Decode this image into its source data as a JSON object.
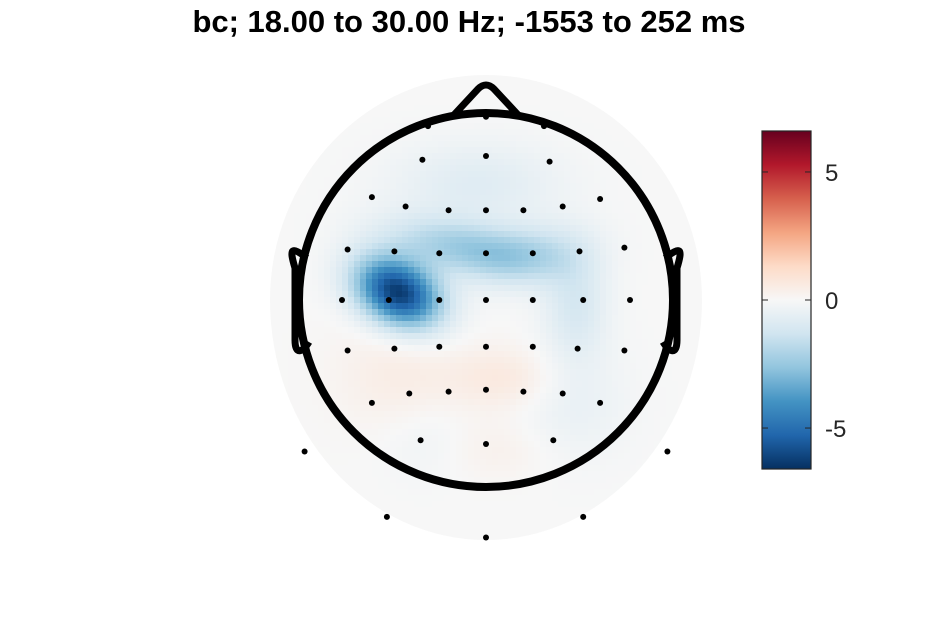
{
  "chart_data": {
    "type": "heatmap",
    "subtype": "topographic-scalp-map",
    "title": "bc; 18.00 to 30.00 Hz; -1553 to 252 ms",
    "colorbar": {
      "limits": [
        -6.6,
        6.6
      ],
      "ticks": [
        5,
        0,
        -5
      ],
      "tick_labels": [
        "5",
        "0",
        "-5"
      ],
      "colormap": [
        "#053061",
        "#2166ac",
        "#4393c3",
        "#92c5de",
        "#d1e5f0",
        "#f7f7f7",
        "#fddbc7",
        "#f4a582",
        "#d6604d",
        "#b2182b",
        "#67001f"
      ]
    },
    "head": {
      "outline_color": "#000000",
      "grid_visible": false
    },
    "blobs": [
      {
        "x": -0.47,
        "y": 0.04,
        "sx": 0.17,
        "sy": 0.12,
        "value": -6.4,
        "angle": -28
      },
      {
        "x": -0.12,
        "y": 0.28,
        "sx": 0.28,
        "sy": 0.1,
        "value": -2.2,
        "angle": -10
      },
      {
        "x": 0.24,
        "y": 0.24,
        "sx": 0.22,
        "sy": 0.11,
        "value": -1.4,
        "angle": 8
      },
      {
        "x": 0.48,
        "y": -0.02,
        "sx": 0.12,
        "sy": 0.2,
        "value": -1.1,
        "angle": 0
      },
      {
        "x": -0.05,
        "y": 0.62,
        "sx": 0.32,
        "sy": 0.16,
        "value": -0.8,
        "angle": 0
      },
      {
        "x": 0.12,
        "y": -0.42,
        "sx": 0.2,
        "sy": 0.12,
        "value": 0.7,
        "angle": 0
      },
      {
        "x": -0.45,
        "y": -0.4,
        "sx": 0.25,
        "sy": 0.22,
        "value": 0.5,
        "angle": 0
      },
      {
        "x": 0.45,
        "y": -0.55,
        "sx": 0.22,
        "sy": 0.22,
        "value": -0.5,
        "angle": 0
      },
      {
        "x": 0.05,
        "y": -0.8,
        "sx": 0.22,
        "sy": 0.12,
        "value": 0.35,
        "angle": 0
      },
      {
        "x": -0.3,
        "y": -0.75,
        "sx": 0.18,
        "sy": 0.15,
        "value": -0.35,
        "angle": 0
      }
    ],
    "electrodes": [
      [
        0.0,
        0.98
      ],
      [
        -0.31,
        0.93
      ],
      [
        0.31,
        0.93
      ],
      [
        -0.59,
        0.81
      ],
      [
        -0.34,
        0.75
      ],
      [
        0.0,
        0.77
      ],
      [
        0.34,
        0.74
      ],
      [
        0.59,
        0.81
      ],
      [
        -0.81,
        0.59
      ],
      [
        -0.61,
        0.55
      ],
      [
        -0.43,
        0.5
      ],
      [
        -0.2,
        0.48
      ],
      [
        0.0,
        0.48
      ],
      [
        0.2,
        0.48
      ],
      [
        0.41,
        0.5
      ],
      [
        0.61,
        0.54
      ],
      [
        0.81,
        0.59
      ],
      [
        -0.74,
        0.27
      ],
      [
        -0.49,
        0.26
      ],
      [
        -0.25,
        0.25
      ],
      [
        0.0,
        0.25
      ],
      [
        0.25,
        0.25
      ],
      [
        0.5,
        0.26
      ],
      [
        0.74,
        0.28
      ],
      [
        -0.77,
        0.0
      ],
      [
        -0.52,
        0.0
      ],
      [
        -0.25,
        0.0
      ],
      [
        0.0,
        0.0
      ],
      [
        0.25,
        0.0
      ],
      [
        0.52,
        0.0
      ],
      [
        0.77,
        0.0
      ],
      [
        -0.74,
        -0.27
      ],
      [
        -0.49,
        -0.26
      ],
      [
        -0.25,
        -0.25
      ],
      [
        0.0,
        -0.25
      ],
      [
        0.25,
        -0.25
      ],
      [
        0.49,
        -0.26
      ],
      [
        0.74,
        -0.27
      ],
      [
        -0.61,
        -0.55
      ],
      [
        -0.41,
        -0.5
      ],
      [
        -0.2,
        -0.49
      ],
      [
        0.0,
        -0.48
      ],
      [
        0.2,
        -0.49
      ],
      [
        0.41,
        -0.5
      ],
      [
        0.61,
        -0.55
      ],
      [
        -0.35,
        -0.75
      ],
      [
        0.0,
        -0.77
      ],
      [
        0.36,
        -0.75
      ],
      [
        -0.97,
        -0.81
      ],
      [
        -0.59,
        -0.81
      ],
      [
        0.59,
        -0.81
      ],
      [
        0.97,
        -0.81
      ],
      [
        -0.31,
        -0.95
      ],
      [
        0.31,
        -0.95
      ],
      [
        -0.53,
        -1.16
      ],
      [
        0.52,
        -1.16
      ],
      [
        0.0,
        -1.27
      ]
    ]
  }
}
